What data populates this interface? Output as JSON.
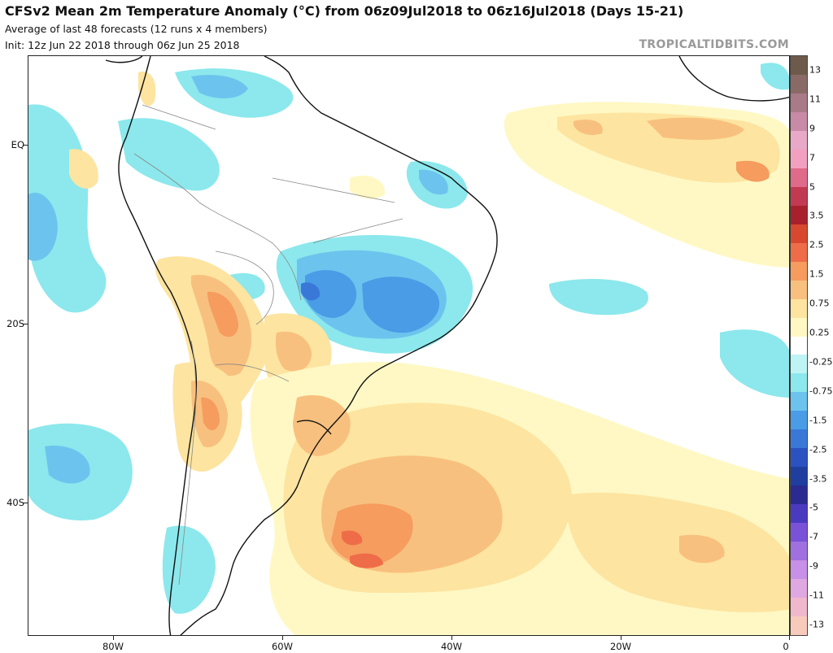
{
  "header": {
    "title": "CFSv2 Mean 2m Temperature Anomaly (°C) from 06z09Jul2018 to 06z16Jul2018 (Days 15-21)",
    "subtitle1": "Average of last 48 forecasts (12 runs x 4 members)",
    "subtitle2": "Init: 12z Jun 22 2018 through 06z Jun 25 2018",
    "brand": "TROPICALTIDBITS.COM"
  },
  "axes": {
    "y_labels": [
      "EQ",
      "20S",
      "40S"
    ],
    "x_labels": [
      "80W",
      "60W",
      "40W",
      "20W",
      "0"
    ]
  },
  "colorbar": {
    "labels": [
      "13",
      "11",
      "9",
      "7",
      "5",
      "3.5",
      "2.5",
      "1.5",
      "0.75",
      "0.25",
      "-0.25",
      "-0.75",
      "-1.5",
      "-2.5",
      "-3.5",
      "-5",
      "-7",
      "-9",
      "-11",
      "-13"
    ],
    "colors": [
      "#6e5a4a",
      "#8a6a66",
      "#a97a88",
      "#c88aa6",
      "#e8a8c8",
      "#f2a0c0",
      "#e06a8a",
      "#c23a52",
      "#a8202e",
      "#d84830",
      "#ef6c48",
      "#f59c5e",
      "#f8c07e",
      "#fde4a0",
      "#fff8c4",
      "#ffffff",
      "#bff4f4",
      "#8ce8ec",
      "#6cc4ee",
      "#4a9ce6",
      "#3a78d8",
      "#2a52c0",
      "#1f3ea0",
      "#2a2a90",
      "#4a3ac0",
      "#7a52d8",
      "#a070e0",
      "#c890e6",
      "#e0a8e0",
      "#f0b8cc",
      "#f8cabc"
    ]
  },
  "colors": {
    "cool1": "#8ce8ec",
    "cool2": "#6cc4ee",
    "cool3": "#4a9ce6",
    "cool4": "#3a78d8",
    "warm1": "#fff8c4",
    "warm2": "#fde4a0",
    "warm3": "#f8c07e",
    "warm4": "#f59c5e",
    "warm5": "#ef6c48",
    "land_line": "#111111",
    "border_line": "#888888"
  }
}
